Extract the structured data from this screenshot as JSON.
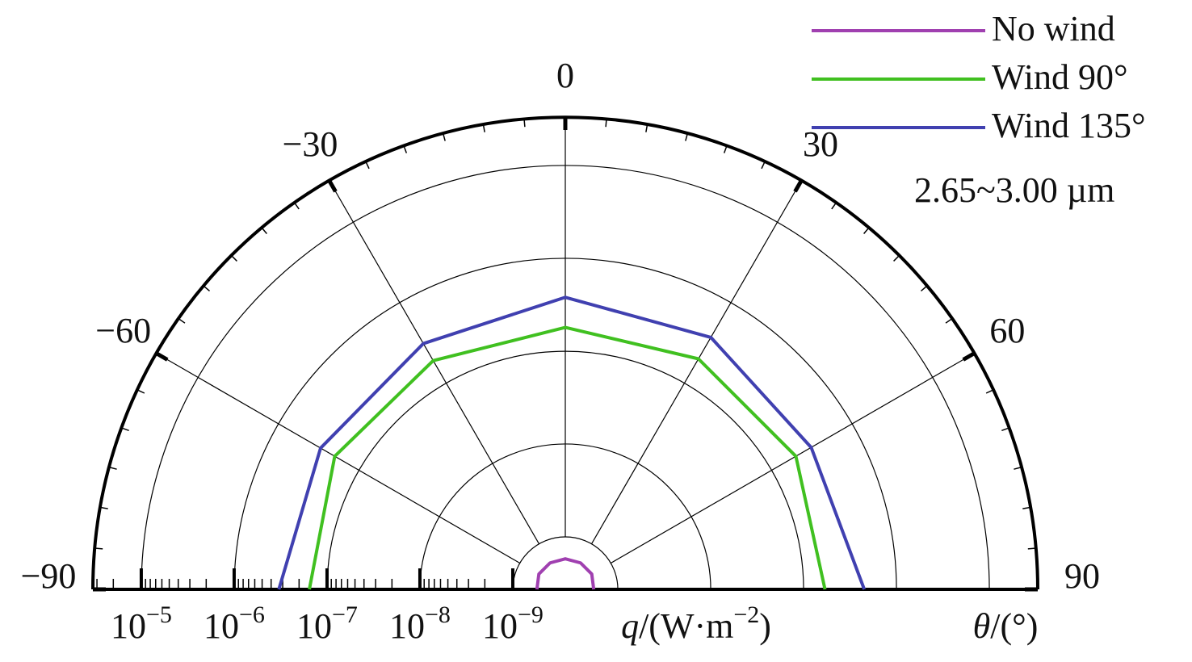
{
  "chart_data": {
    "type": "polar",
    "theta": [
      -90,
      -60,
      -30,
      0,
      30,
      60,
      90
    ],
    "series": [
      {
        "name": "No wind",
        "color": "#a040b0",
        "values": [
          5.5e-10,
          5.8e-10,
          5.8e-10,
          5.8e-10,
          5.8e-10,
          5.8e-10,
          5.5e-10
        ]
      },
      {
        "name": "Wind 90°",
        "color": "#40c020",
        "values": [
          1.55e-07,
          2e-07,
          1.9e-07,
          1.8e-07,
          2e-07,
          2e-07,
          1.7e-07
        ]
      },
      {
        "name": "Wind 135°",
        "color": "#4040b0",
        "values": [
          3.3e-07,
          3e-07,
          3.1e-07,
          3.8e-07,
          3.7e-07,
          3.1e-07,
          4.5e-07
        ]
      }
    ],
    "rlim": [
      2.72e-10,
      3.32e-05
    ],
    "rscale": "log",
    "rticks": [
      {
        "value": 1e-05,
        "label": "10−5"
      },
      {
        "value": 1e-06,
        "label": "10−6"
      },
      {
        "value": 1e-07,
        "label": "10−7"
      },
      {
        "value": 1e-08,
        "label": "10−8"
      },
      {
        "value": 1e-09,
        "label": "10−9"
      }
    ],
    "thetaticks": [
      {
        "value": -90,
        "label": "−90"
      },
      {
        "value": -60,
        "label": "−60"
      },
      {
        "value": -30,
        "label": "−30"
      },
      0,
      30,
      60,
      90
    ],
    "r_label": "q/(W·m−2)",
    "theta_label": "θ/(°)",
    "annotation": "2.65~3.00 µm",
    "grid": true,
    "legend": "top-right"
  }
}
